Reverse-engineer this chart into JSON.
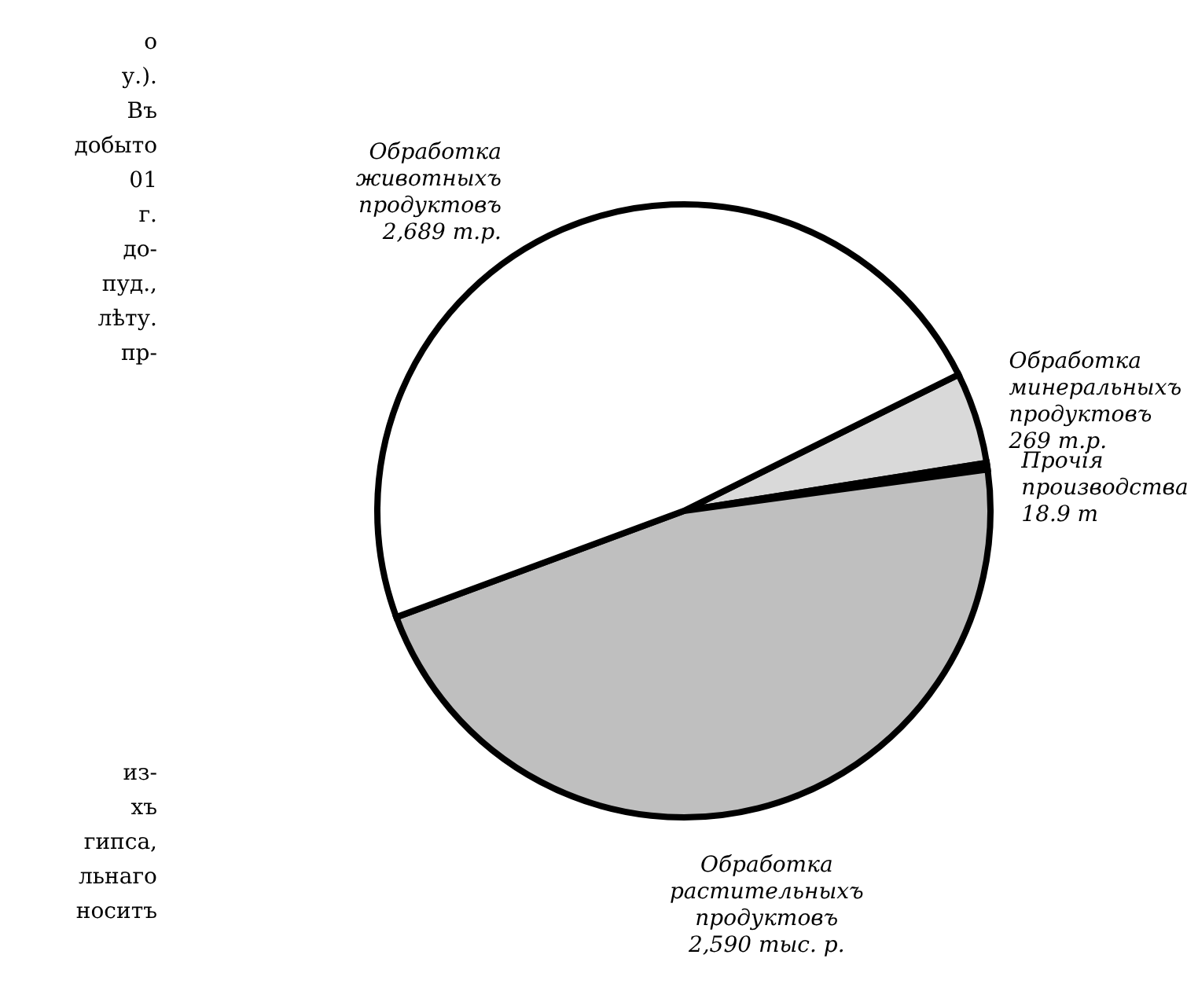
{
  "chart_data": {
    "type": "pie",
    "categories": [
      "Обработка минеральныхъ продуктовъ",
      "Прочія производства",
      "Обработка растительныхъ продуктовъ",
      "Обработка животныхъ продуктовъ"
    ],
    "values": [
      269,
      18.9,
      2590,
      2689
    ],
    "value_labels": [
      "269 т.р.",
      "18.9 т",
      "2,590 тыс. р.",
      "2,689 т.р."
    ],
    "colors": [
      "#d9d9d9",
      "#111111",
      "#bfbfbf",
      "#ffffff"
    ],
    "annotations": [
      "о у.). Въ добыто 01 г. до- пуд., лѣту. пр-",
      "из- хъ гипса, льнаго носитъ"
    ],
    "legend": false
  }
}
